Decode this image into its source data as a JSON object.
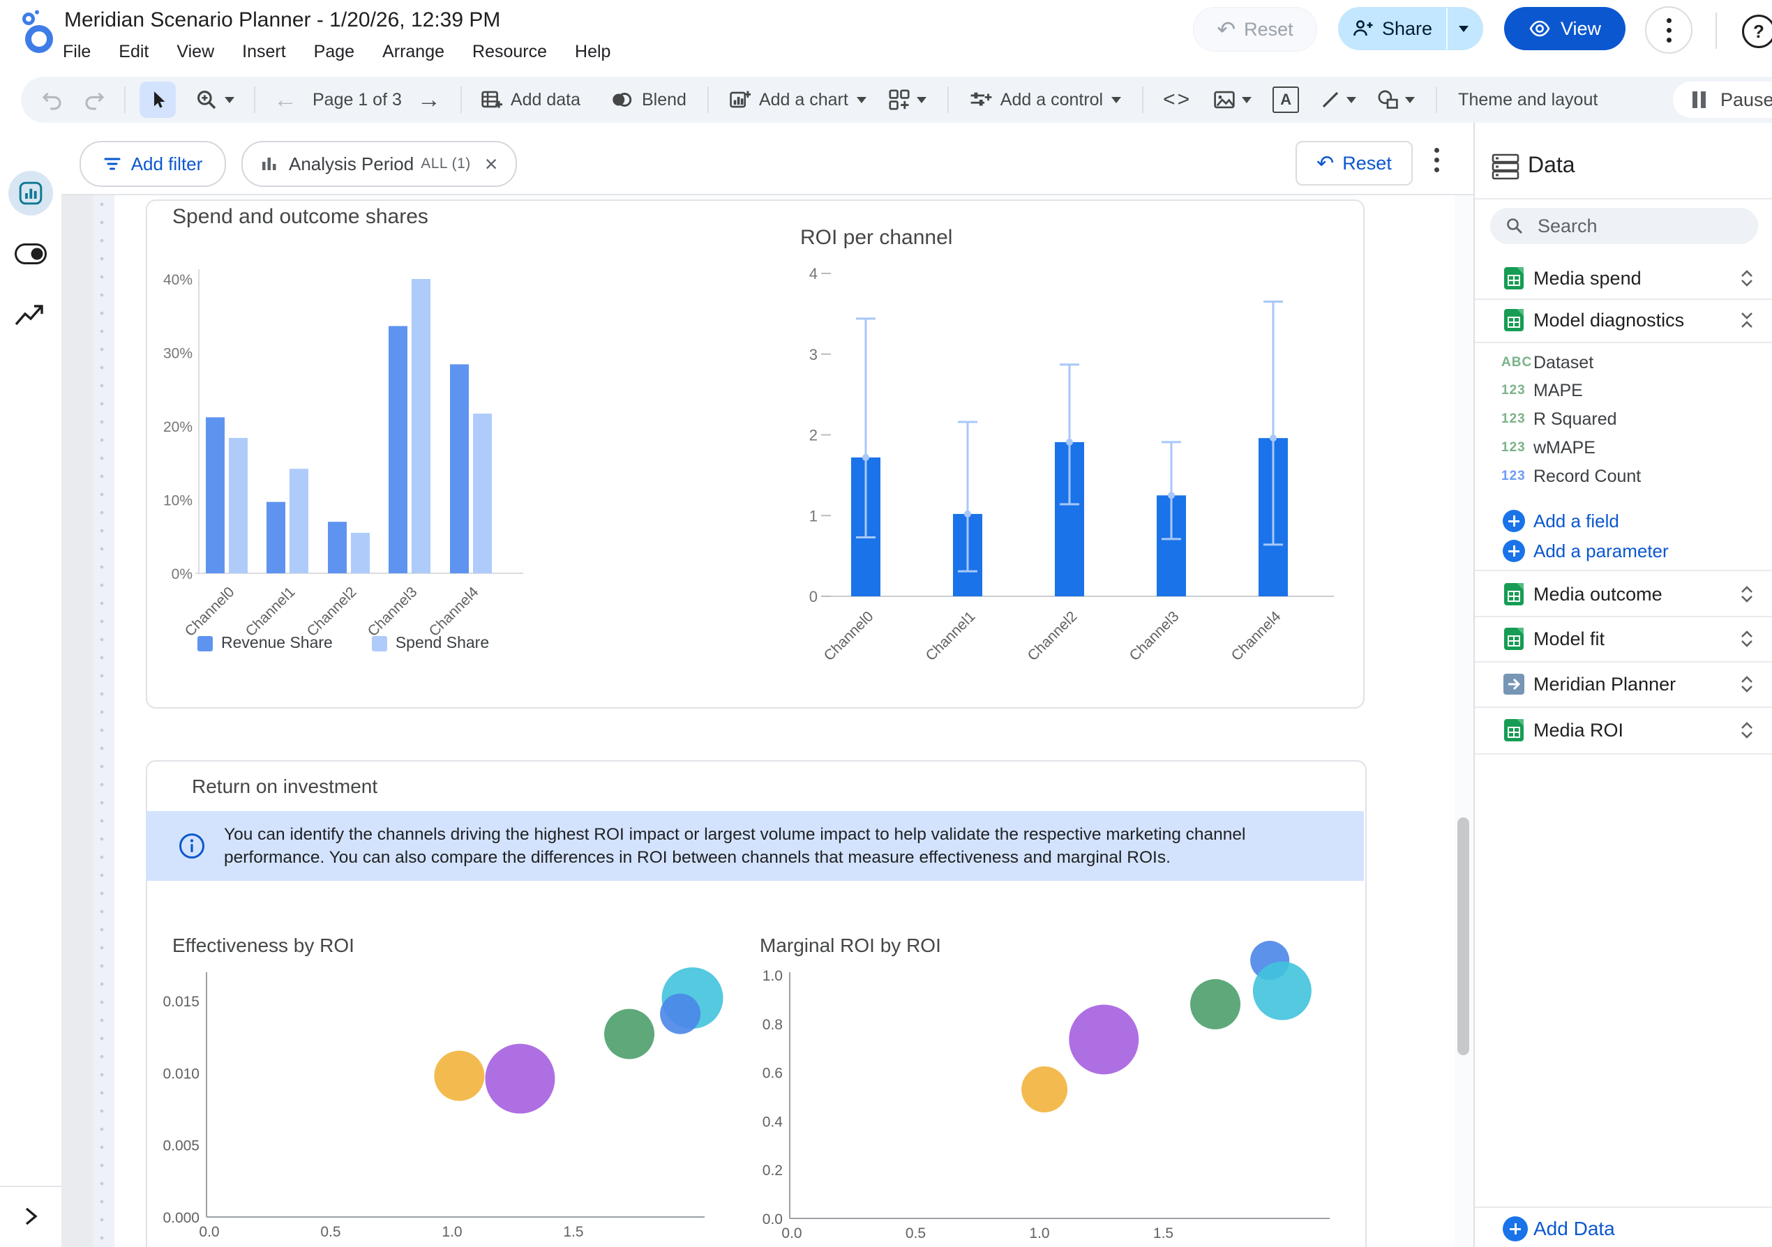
{
  "app": {
    "title": "Meridian Scenario Planner - 1/20/26, 12:39 PM",
    "menus": [
      "File",
      "Edit",
      "View",
      "Insert",
      "Page",
      "Arrange",
      "Resource",
      "Help"
    ],
    "header_actions": {
      "reset": "Reset",
      "share": "Share",
      "view": "View"
    }
  },
  "toolbar": {
    "page_indicator": "Page 1 of 3",
    "add_data": "Add data",
    "blend": "Blend",
    "add_chart": "Add a chart",
    "add_control": "Add a control",
    "theme_layout": "Theme and layout",
    "pause_updates": "Pause u"
  },
  "filter_bar": {
    "add_filter": "Add filter",
    "chip_label": "Analysis Period",
    "chip_value": "ALL (1)",
    "reset": "Reset"
  },
  "report": {
    "section_title": "Return on investment",
    "info_text": "You can identify the channels driving the highest ROI impact or largest volume impact to help validate the respective marketing channel performance. You can also compare the differences in ROI between channels that measure effectiveness and marginal ROIs."
  },
  "chart_data": [
    {
      "id": "spend_outcome_shares",
      "type": "bar",
      "title": "Spend and outcome shares",
      "categories": [
        "Channel0",
        "Channel1",
        "Channel2",
        "Channel3",
        "Channel4"
      ],
      "series": [
        {
          "name": "Revenue Share",
          "color": "#5E94F0",
          "values": [
            21.2,
            9.7,
            7.0,
            33.6,
            28.4
          ]
        },
        {
          "name": "Spend Share",
          "color": "#AECBFA",
          "values": [
            18.4,
            14.2,
            5.5,
            40.0,
            21.7
          ]
        }
      ],
      "y_ticks": [
        0,
        10,
        20,
        30,
        40
      ],
      "y_tick_labels": [
        "0%",
        "10%",
        "20%",
        "30%",
        "40%"
      ],
      "ylim": [
        0,
        42
      ],
      "legend_position": "bottom"
    },
    {
      "id": "roi_per_channel",
      "type": "bar",
      "title": "ROI per channel",
      "categories": [
        "Channel0",
        "Channel1",
        "Channel2",
        "Channel3",
        "Channel4"
      ],
      "series": [
        {
          "name": "ROI",
          "color": "#1A73E8",
          "values": [
            1.72,
            1.02,
            1.91,
            1.25,
            1.96
          ]
        }
      ],
      "error_bars": {
        "color": "#A8C7FA",
        "low": [
          0.73,
          0.31,
          1.14,
          0.71,
          0.64
        ],
        "high": [
          3.44,
          2.16,
          2.87,
          1.91,
          3.65
        ]
      },
      "y_ticks": [
        0,
        1,
        2,
        3,
        4
      ],
      "y_tick_labels": [
        "0",
        "1",
        "2",
        "3",
        "4"
      ],
      "ylim": [
        0,
        4
      ]
    },
    {
      "id": "effectiveness_by_roi",
      "type": "scatter",
      "title": "Effectiveness by ROI",
      "x_ticks": [
        0,
        0.5,
        1.0,
        1.5
      ],
      "x_tick_labels": [
        "0.0",
        "0.5",
        "1.0",
        "1.5"
      ],
      "y_ticks": [
        0,
        0.005,
        0.01,
        0.015
      ],
      "y_tick_labels": [
        "0.000",
        "0.005",
        "0.010",
        "0.015"
      ],
      "xlim": [
        0,
        2.05
      ],
      "ylim": [
        0,
        0.0165
      ],
      "points": [
        {
          "x": 1.03,
          "y": 0.0098,
          "r": 36,
          "color": "#F2B43C"
        },
        {
          "x": 1.28,
          "y": 0.0096,
          "r": 50,
          "color": "#A55FE0"
        },
        {
          "x": 1.73,
          "y": 0.0127,
          "r": 36,
          "color": "#4C9E6B"
        },
        {
          "x": 1.99,
          "y": 0.0152,
          "r": 44,
          "color": "#41C3DD"
        },
        {
          "x": 1.94,
          "y": 0.0141,
          "r": 29,
          "color": "#4A86E8"
        }
      ]
    },
    {
      "id": "marginal_roi_by_roi",
      "type": "scatter",
      "title": "Marginal ROI by ROI",
      "x_ticks": [
        0,
        0.5,
        1.0,
        1.5
      ],
      "x_tick_labels": [
        "0.0",
        "0.5",
        "1.0",
        "1.5"
      ],
      "y_ticks": [
        0,
        0.2,
        0.4,
        0.6,
        0.8,
        1.0
      ],
      "y_tick_labels": [
        "0.0",
        "0.2",
        "0.4",
        "0.6",
        "0.8",
        "1.0"
      ],
      "xlim": [
        0,
        2.05
      ],
      "ylim": [
        0,
        1.15
      ],
      "points": [
        {
          "x": 1.02,
          "y": 0.53,
          "r": 33,
          "color": "#F2B43C"
        },
        {
          "x": 1.26,
          "y": 0.735,
          "r": 50,
          "color": "#A55FE0"
        },
        {
          "x": 1.71,
          "y": 0.88,
          "r": 36,
          "color": "#4C9E6B"
        },
        {
          "x": 1.93,
          "y": 1.06,
          "r": 28,
          "color": "#4A86E8"
        },
        {
          "x": 1.98,
          "y": 0.935,
          "r": 42,
          "color": "#41C3DD"
        }
      ]
    }
  ],
  "data_panel": {
    "title": "Data",
    "search_placeholder": "Search",
    "badges": {
      "text": "ABC",
      "number": "123"
    },
    "sources": [
      {
        "name": "Media spend",
        "type": "sheet",
        "state": "collapsed"
      },
      {
        "name": "Model diagnostics",
        "type": "sheet",
        "state": "expanded",
        "fields": [
          {
            "name": "Dataset",
            "kind": "text"
          },
          {
            "name": "MAPE",
            "kind": "number"
          },
          {
            "name": "R Squared",
            "kind": "number"
          },
          {
            "name": "wMAPE",
            "kind": "number"
          },
          {
            "name": "Record Count",
            "kind": "metric"
          }
        ],
        "actions": [
          "Add a field",
          "Add a parameter"
        ]
      },
      {
        "name": "Media outcome",
        "type": "sheet",
        "state": "collapsed"
      },
      {
        "name": "Model fit",
        "type": "sheet",
        "state": "collapsed"
      },
      {
        "name": "Meridian Planner",
        "type": "extract",
        "state": "collapsed"
      },
      {
        "name": "Media ROI",
        "type": "sheet",
        "state": "collapsed"
      }
    ],
    "add_data": "Add Data"
  }
}
